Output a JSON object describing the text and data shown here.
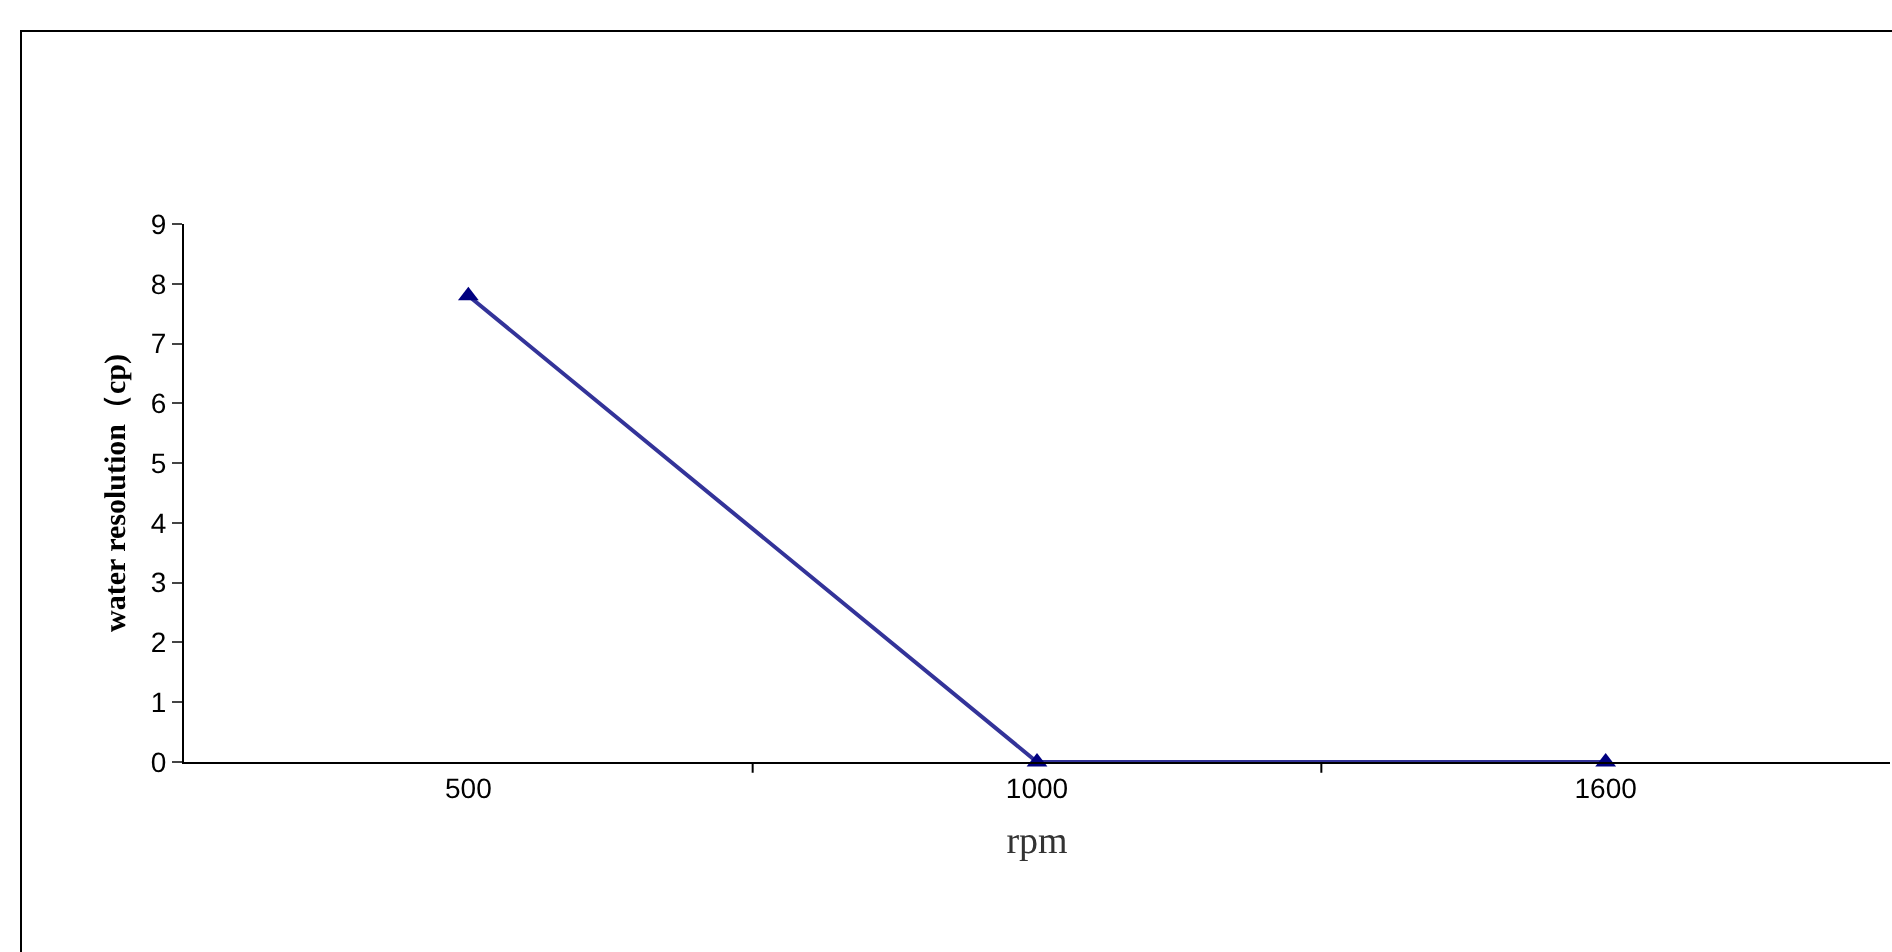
{
  "chart_data": {
    "type": "line",
    "xlabel": "rpm",
    "ylabel": "water resolution（cp)",
    "categories": [
      "500",
      "1000",
      "1600"
    ],
    "series": [
      {
        "color": "#333399",
        "values": [
          7.8,
          0,
          0
        ]
      }
    ],
    "ylim": [
      0,
      9
    ],
    "yticks": [
      0,
      1,
      2,
      3,
      4,
      5,
      6,
      7,
      8,
      9
    ],
    "grid": false,
    "marker": "triangle",
    "line_style": "solid"
  }
}
